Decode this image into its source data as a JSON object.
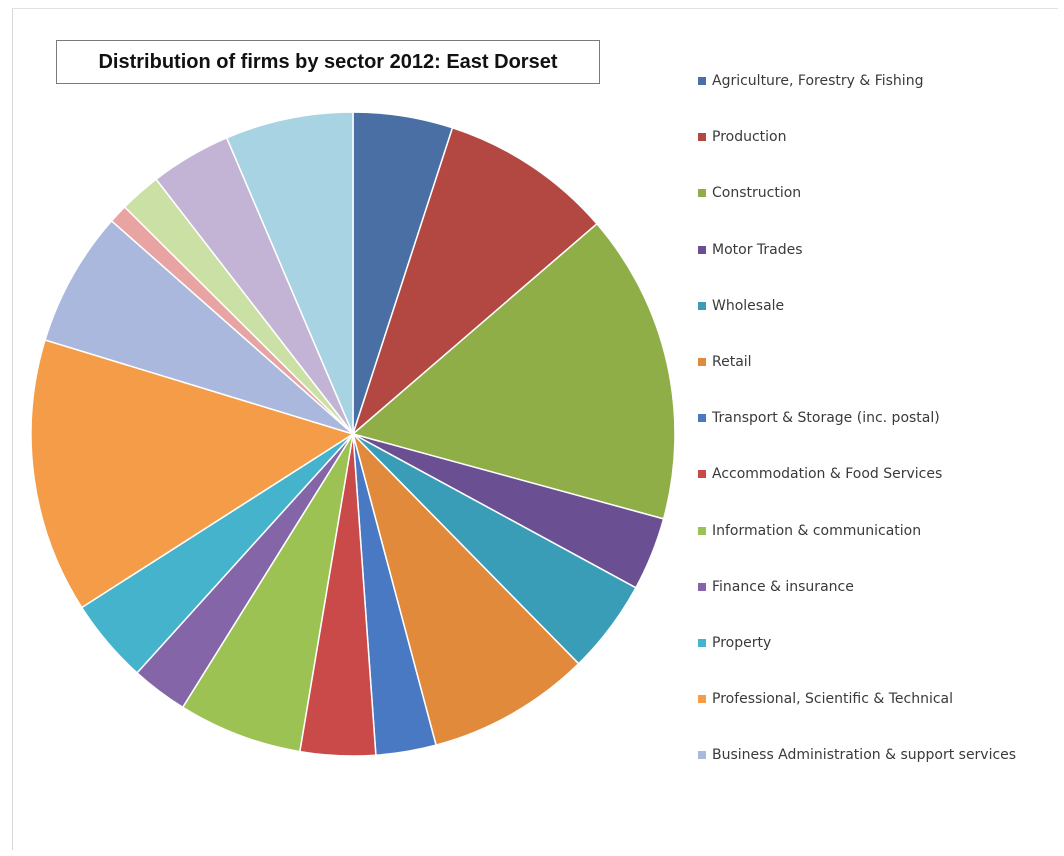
{
  "chart_data": {
    "type": "pie",
    "title": "Distribution of firms by sector 2012: East Dorset",
    "legend_position": "right",
    "slices": [
      {
        "label": "Agriculture, Forestry & Fishing",
        "value": 5.3,
        "color": "#4a6fa5"
      },
      {
        "label": "Production",
        "value": 9.2,
        "color": "#b34742"
      },
      {
        "label": "Construction",
        "value": 16.5,
        "color": "#8fae47"
      },
      {
        "label": "Motor Trades",
        "value": 3.9,
        "color": "#6b4f93"
      },
      {
        "label": "Wholesale",
        "value": 5.0,
        "color": "#3a9db8"
      },
      {
        "label": "Retail",
        "value": 8.7,
        "color": "#e28a3c"
      },
      {
        "label": "Transport & Storage (inc. postal)",
        "value": 3.2,
        "color": "#4a79c4"
      },
      {
        "label": "Accommodation & Food Services",
        "value": 4.0,
        "color": "#c94a48"
      },
      {
        "label": "Information & communication",
        "value": 6.6,
        "color": "#9cc254"
      },
      {
        "label": "Finance & insurance",
        "value": 3.0,
        "color": "#8465a8"
      },
      {
        "label": "Property",
        "value": 4.5,
        "color": "#46b3cc"
      },
      {
        "label": "Professional, Scientific & Technical",
        "value": 14.6,
        "color": "#f59c48"
      },
      {
        "label": "Business Administration & support services",
        "value": 7.2,
        "color": "#a9b8dc"
      },
      {
        "label": "",
        "value": 1.0,
        "color": "#e8a4a2"
      },
      {
        "label": "",
        "value": 2.2,
        "color": "#cbe0a4"
      },
      {
        "label": "",
        "value": 4.3,
        "color": "#c3b4d6"
      },
      {
        "label": "",
        "value": 6.8,
        "color": "#a7d3e3"
      }
    ]
  }
}
